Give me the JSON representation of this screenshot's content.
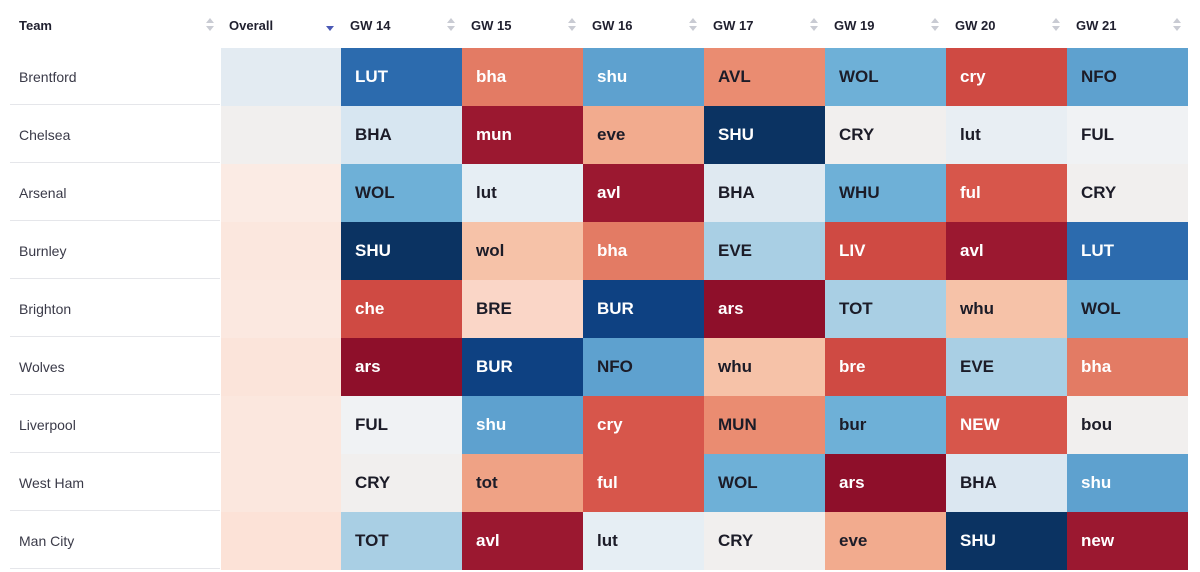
{
  "columns": {
    "team": "Team",
    "overall": "Overall",
    "gameweeks": [
      "GW 14",
      "GW 15",
      "GW 16",
      "GW 17",
      "GW 19",
      "GW 20",
      "GW 21"
    ]
  },
  "rows": [
    {
      "team": "Brentford",
      "overall_color": "#e3ebf2",
      "fixtures": [
        {
          "label": "LUT",
          "bg": "#2c6bae",
          "fg": "#ffffff"
        },
        {
          "label": "bha",
          "bg": "#e37b64",
          "fg": "#ffffff"
        },
        {
          "label": "shu",
          "bg": "#5ea1cf",
          "fg": "#ffffff"
        },
        {
          "label": "AVL",
          "bg": "#ea8c71",
          "fg": "#1c1c28"
        },
        {
          "label": "WOL",
          "bg": "#6eb0d7",
          "fg": "#1c1c28"
        },
        {
          "label": "cry",
          "bg": "#cf4a43",
          "fg": "#ffffff"
        },
        {
          "label": "NFO",
          "bg": "#5ea1cf",
          "fg": "#1c1c28"
        }
      ]
    },
    {
      "team": "Chelsea",
      "overall_color": "#f1efee",
      "fixtures": [
        {
          "label": "BHA",
          "bg": "#d7e6f1",
          "fg": "#1c1c28"
        },
        {
          "label": "mun",
          "bg": "#9b1830",
          "fg": "#ffffff"
        },
        {
          "label": "eve",
          "bg": "#f2ab8e",
          "fg": "#1c1c28"
        },
        {
          "label": "SHU",
          "bg": "#0b3362",
          "fg": "#ffffff"
        },
        {
          "label": "CRY",
          "bg": "#f1efee",
          "fg": "#1c1c28"
        },
        {
          "label": "lut",
          "bg": "#e8eef3",
          "fg": "#1c1c28"
        },
        {
          "label": "FUL",
          "bg": "#f0f2f4",
          "fg": "#1c1c28"
        }
      ]
    },
    {
      "team": "Arsenal",
      "overall_color": "#fbebe4",
      "fixtures": [
        {
          "label": "WOL",
          "bg": "#6eb0d7",
          "fg": "#1c1c28"
        },
        {
          "label": "lut",
          "bg": "#e6eef4",
          "fg": "#1c1c28"
        },
        {
          "label": "avl",
          "bg": "#9b1830",
          "fg": "#ffffff"
        },
        {
          "label": "BHA",
          "bg": "#dfe9f1",
          "fg": "#1c1c28"
        },
        {
          "label": "WHU",
          "bg": "#6eb0d7",
          "fg": "#1c1c28"
        },
        {
          "label": "ful",
          "bg": "#d7564b",
          "fg": "#ffffff"
        },
        {
          "label": "CRY",
          "bg": "#f1efee",
          "fg": "#1c1c28"
        }
      ]
    },
    {
      "team": "Burnley",
      "overall_color": "#fbe7de",
      "fixtures": [
        {
          "label": "SHU",
          "bg": "#0b3362",
          "fg": "#ffffff"
        },
        {
          "label": "wol",
          "bg": "#f6c2a8",
          "fg": "#1c1c28"
        },
        {
          "label": "bha",
          "bg": "#e37b64",
          "fg": "#ffffff"
        },
        {
          "label": "EVE",
          "bg": "#a9cfe4",
          "fg": "#1c1c28"
        },
        {
          "label": "LIV",
          "bg": "#cf4a43",
          "fg": "#ffffff"
        },
        {
          "label": "avl",
          "bg": "#9b1830",
          "fg": "#ffffff"
        },
        {
          "label": "LUT",
          "bg": "#2c6bae",
          "fg": "#ffffff"
        }
      ]
    },
    {
      "team": "Brighton",
      "overall_color": "#fbe8e0",
      "fixtures": [
        {
          "label": "che",
          "bg": "#cf4a43",
          "fg": "#ffffff"
        },
        {
          "label": "BRE",
          "bg": "#fad6c7",
          "fg": "#1c1c28"
        },
        {
          "label": "BUR",
          "bg": "#0e4182",
          "fg": "#ffffff"
        },
        {
          "label": "ars",
          "bg": "#8e0f2a",
          "fg": "#ffffff"
        },
        {
          "label": "TOT",
          "bg": "#a9cfe4",
          "fg": "#1c1c28"
        },
        {
          "label": "whu",
          "bg": "#f6c2a8",
          "fg": "#1c1c28"
        },
        {
          "label": "WOL",
          "bg": "#6eb0d7",
          "fg": "#1c1c28"
        }
      ]
    },
    {
      "team": "Wolves",
      "overall_color": "#fbe4da",
      "fixtures": [
        {
          "label": "ars",
          "bg": "#8e0f2a",
          "fg": "#ffffff"
        },
        {
          "label": "BUR",
          "bg": "#0e4182",
          "fg": "#ffffff"
        },
        {
          "label": "NFO",
          "bg": "#5ea1cf",
          "fg": "#1c1c28"
        },
        {
          "label": "whu",
          "bg": "#f6c2a8",
          "fg": "#1c1c28"
        },
        {
          "label": "bre",
          "bg": "#cf4a43",
          "fg": "#ffffff"
        },
        {
          "label": "EVE",
          "bg": "#a9cfe4",
          "fg": "#1c1c28"
        },
        {
          "label": "bha",
          "bg": "#e37b64",
          "fg": "#ffffff"
        }
      ]
    },
    {
      "team": "Liverpool",
      "overall_color": "#fbe7de",
      "fixtures": [
        {
          "label": "FUL",
          "bg": "#f0f2f4",
          "fg": "#1c1c28"
        },
        {
          "label": "shu",
          "bg": "#5ea1cf",
          "fg": "#ffffff"
        },
        {
          "label": "cry",
          "bg": "#d7564b",
          "fg": "#ffffff"
        },
        {
          "label": "MUN",
          "bg": "#ea8c71",
          "fg": "#1c1c28"
        },
        {
          "label": "bur",
          "bg": "#6eb0d7",
          "fg": "#1c1c28"
        },
        {
          "label": "NEW",
          "bg": "#d7564b",
          "fg": "#ffffff"
        },
        {
          "label": "bou",
          "bg": "#f1efee",
          "fg": "#1c1c28"
        }
      ]
    },
    {
      "team": "West Ham",
      "overall_color": "#fbe7de",
      "fixtures": [
        {
          "label": "CRY",
          "bg": "#f1efee",
          "fg": "#1c1c28"
        },
        {
          "label": "tot",
          "bg": "#efa285",
          "fg": "#1c1c28"
        },
        {
          "label": "ful",
          "bg": "#d7564b",
          "fg": "#ffffff"
        },
        {
          "label": "WOL",
          "bg": "#6eb0d7",
          "fg": "#1c1c28"
        },
        {
          "label": "ars",
          "bg": "#8e0f2a",
          "fg": "#ffffff"
        },
        {
          "label": "BHA",
          "bg": "#dbe7f1",
          "fg": "#1c1c28"
        },
        {
          "label": "shu",
          "bg": "#5ea1cf",
          "fg": "#ffffff"
        }
      ]
    },
    {
      "team": "Man City",
      "overall_color": "#fce2d7",
      "fixtures": [
        {
          "label": "TOT",
          "bg": "#a9cfe4",
          "fg": "#1c1c28"
        },
        {
          "label": "avl",
          "bg": "#9b1830",
          "fg": "#ffffff"
        },
        {
          "label": "lut",
          "bg": "#e6eef4",
          "fg": "#1c1c28"
        },
        {
          "label": "CRY",
          "bg": "#f1efee",
          "fg": "#1c1c28"
        },
        {
          "label": "eve",
          "bg": "#f2ab8e",
          "fg": "#1c1c28"
        },
        {
          "label": "SHU",
          "bg": "#0b3362",
          "fg": "#ffffff"
        },
        {
          "label": "new",
          "bg": "#9b1830",
          "fg": "#ffffff"
        }
      ]
    }
  ]
}
